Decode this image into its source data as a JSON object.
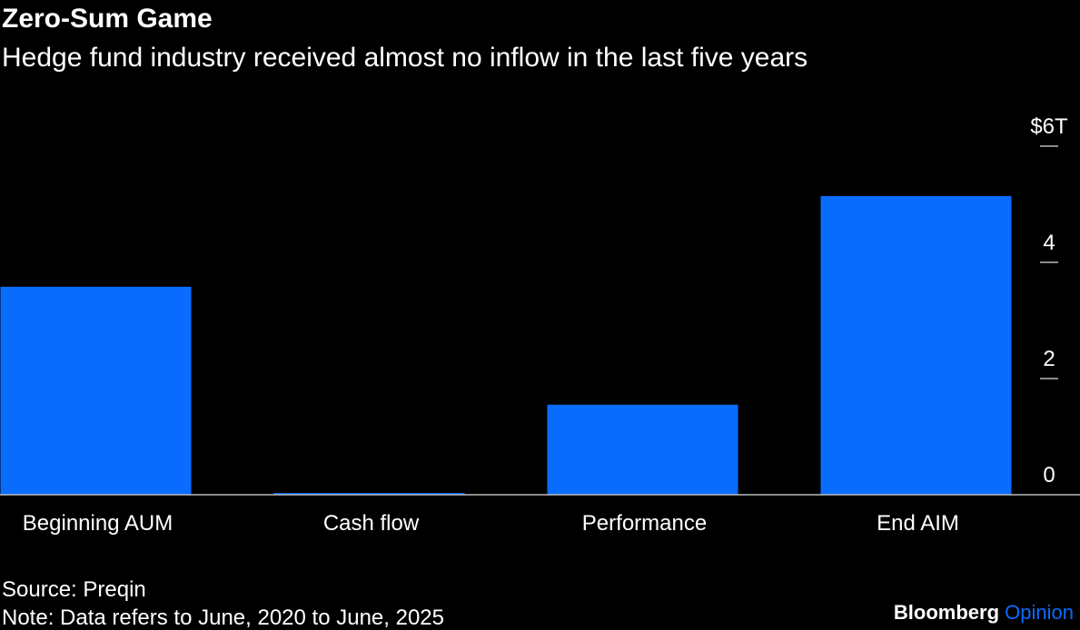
{
  "chart_data": {
    "type": "bar",
    "title": "Zero-Sum Game",
    "subtitle": "Hedge fund industry received almost no inflow in the last five years",
    "categories": [
      "Beginning AUM",
      "Cash flow",
      "Performance",
      "End AIM"
    ],
    "values": [
      3.58,
      0.03,
      1.55,
      5.14
    ],
    "color": "#0a6cff",
    "ylim": [
      0,
      6
    ],
    "yticks": [
      0,
      2,
      4,
      {
        "value": 6,
        "label": "$6T"
      }
    ],
    "source": "Source: Preqin",
    "note": "Note: Data refers to June, 2020 to June, 2025",
    "brand": "Bloomberg",
    "brand_suffix": "Opinion"
  }
}
